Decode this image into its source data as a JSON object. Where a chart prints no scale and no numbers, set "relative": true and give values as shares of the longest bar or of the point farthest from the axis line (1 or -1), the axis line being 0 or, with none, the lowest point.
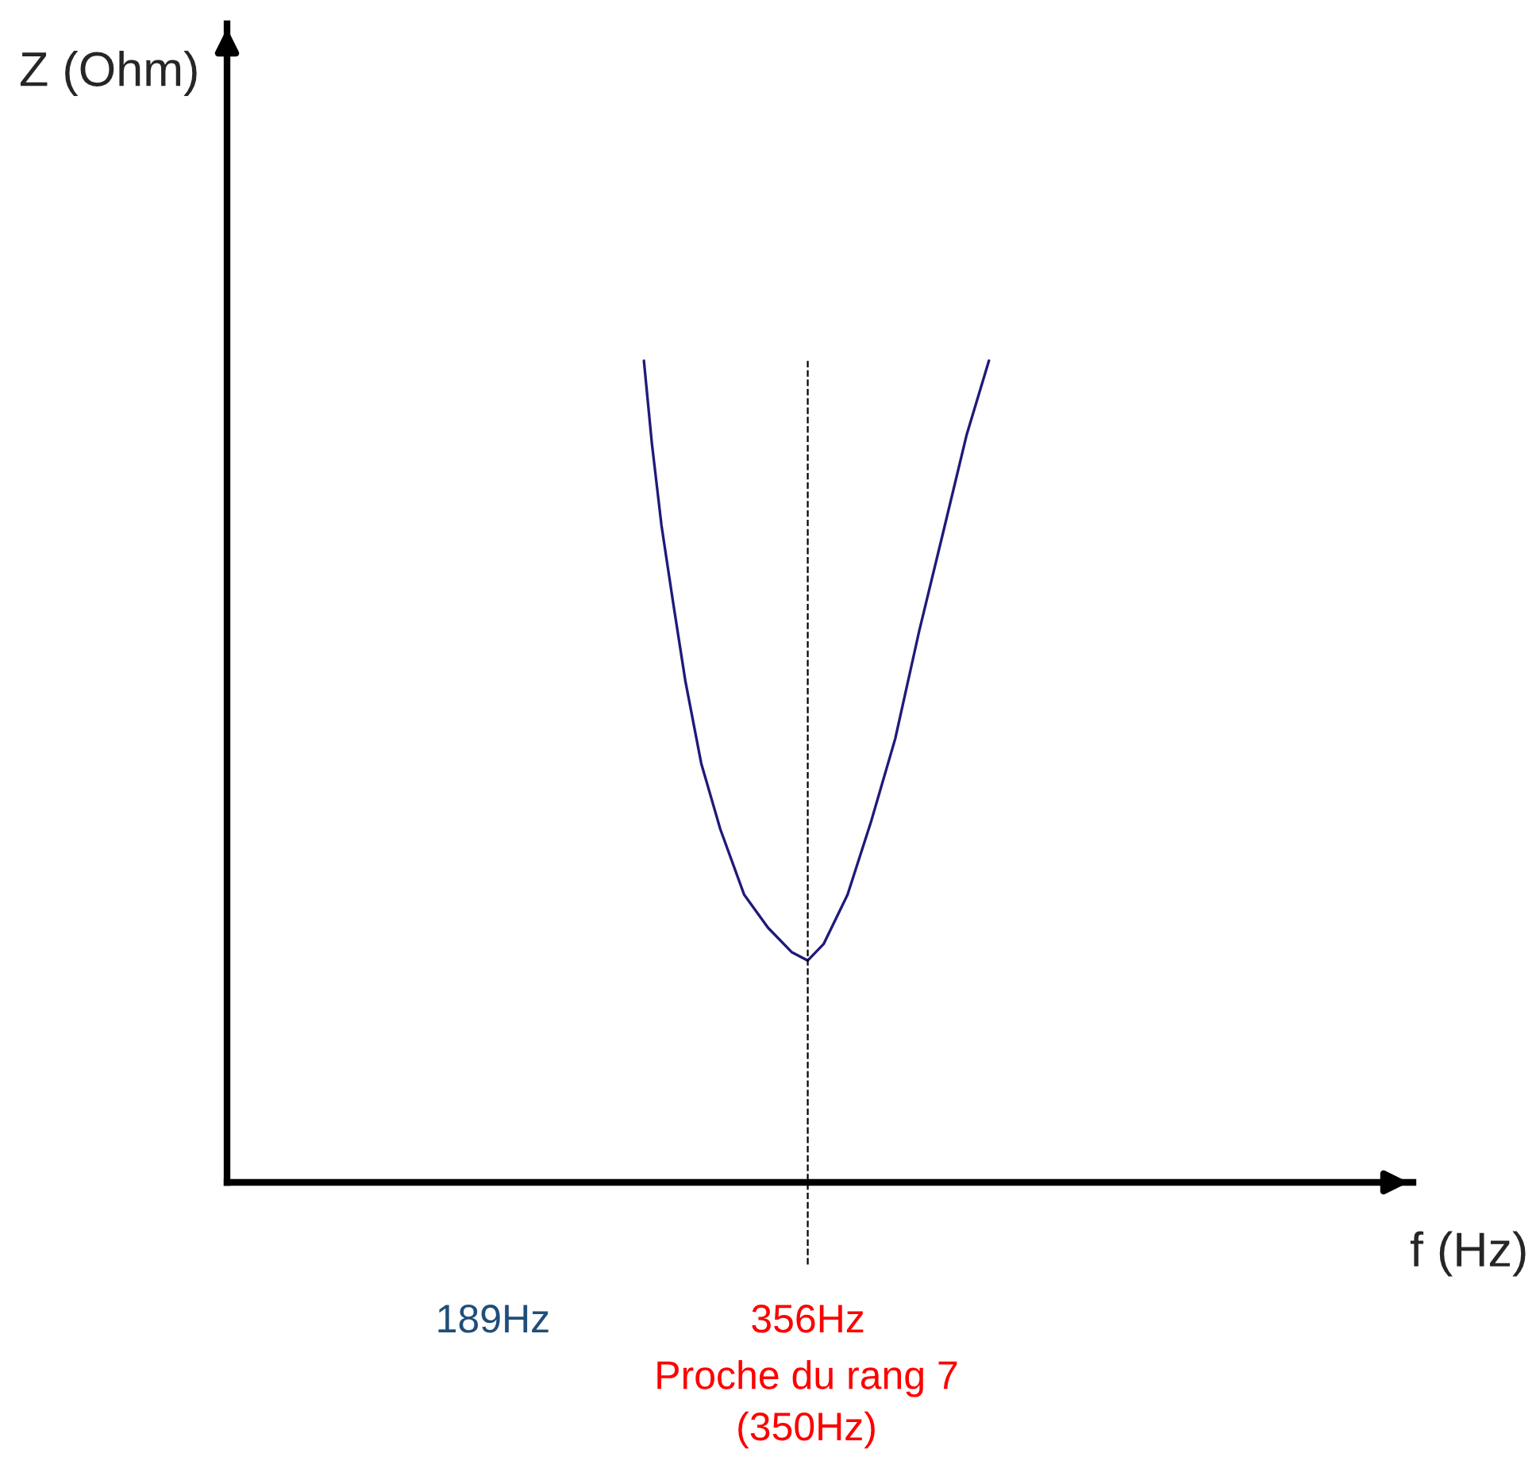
{
  "chart_data": {
    "type": "line",
    "relative": true,
    "xlabel": "f (Hz)",
    "annotations": [
      "Z (Ohm)",
      "Proche du rang 7\n(350Hz)"
    ],
    "xlim": [
      48,
      677
    ],
    "xticks": [
      {
        "value": 189,
        "label": "189Hz"
      },
      {
        "value": 356,
        "label": "356Hz"
      }
    ],
    "series": [
      {
        "color": "#1f1a7a",
        "x": [
          269.1,
          273.3,
          278.4,
          284.3,
          291.1,
          299.5,
          309.6,
          322.3,
          334.9,
          347.6,
          356,
          364.4,
          377.1,
          389.7,
          402.4,
          415.0,
          427.7,
          440.3,
          452.1
        ],
        "values": [
          1.0,
          0.9,
          0.8,
          0.71,
          0.61,
          0.51,
          0.43,
          0.35,
          0.31,
          0.28,
          0.27,
          0.29,
          0.35,
          0.44,
          0.54,
          0.67,
          0.79,
          0.91,
          1.0
        ]
      }
    ],
    "ref_lines": [
      {
        "axis": "x",
        "value": 356,
        "color": "#000000",
        "line_style": "dashed"
      }
    ],
    "grid": false,
    "legend": false
  }
}
